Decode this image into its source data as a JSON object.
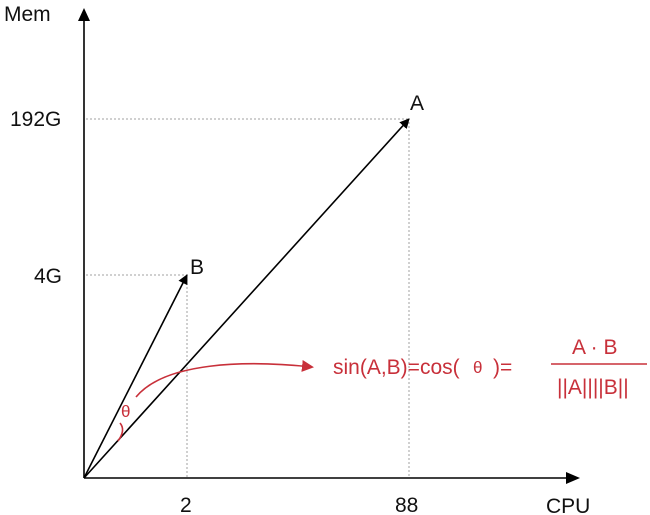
{
  "axes": {
    "y_label": "Mem",
    "x_label": "CPU",
    "y_ticks": [
      "192G",
      "4G"
    ],
    "x_ticks": [
      "2",
      "88"
    ]
  },
  "vectors": {
    "a_label": "A",
    "b_label": "B"
  },
  "formula": {
    "lhs": "sin(A,B)=cos(",
    "theta": "θ",
    "rhs_close": ")=",
    "numerator": "A · B",
    "denominator": "||A||||B||"
  },
  "angle_label": "θ",
  "colors": {
    "axis": "#000000",
    "guide": "#a0a0a0",
    "accent": "#c8303a"
  }
}
